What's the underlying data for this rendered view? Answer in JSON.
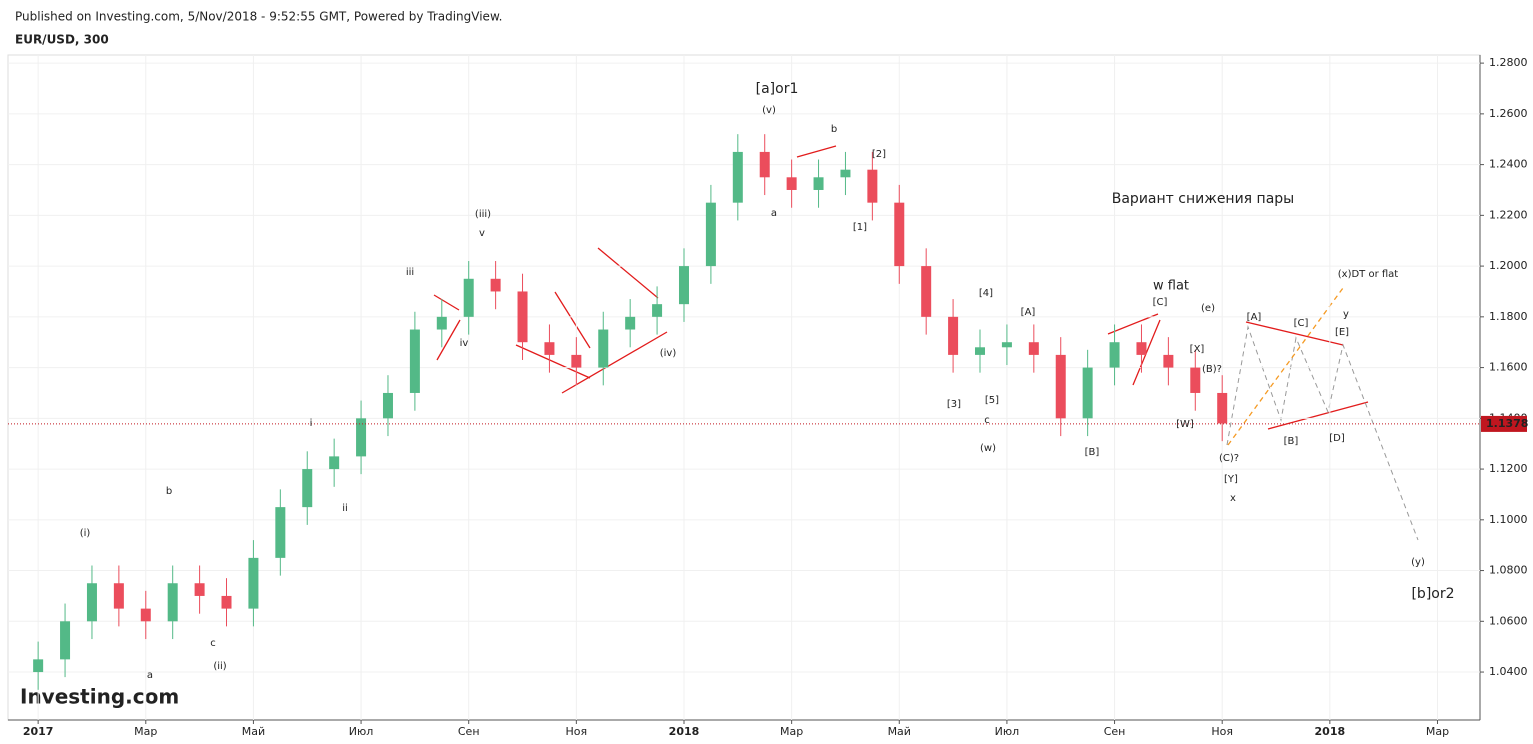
{
  "header": {
    "published": "Published on Investing.com, 5/Nov/2018 - 9:52:55 GMT, Powered by TradingView.",
    "symbol": "EUR/USD, 300",
    "logo": "Investing.com"
  },
  "chart_data": {
    "type": "candlestick",
    "x": [
      0,
      0.5,
      1,
      1.5,
      2,
      2.5,
      3,
      3.5,
      4,
      4.5,
      5,
      5.5,
      6,
      6.5,
      7,
      7.5,
      8,
      8.5,
      9,
      9.5,
      10,
      10.5,
      11,
      11.5,
      12,
      12.5,
      13,
      13.5,
      14,
      14.5,
      15,
      15.5,
      16,
      16.5,
      17,
      17.5,
      18,
      18.5,
      19,
      19.5,
      20,
      20.5,
      21,
      21.5,
      22
    ],
    "open": [
      1.04,
      1.045,
      1.06,
      1.075,
      1.065,
      1.06,
      1.075,
      1.07,
      1.065,
      1.085,
      1.105,
      1.12,
      1.125,
      1.14,
      1.15,
      1.175,
      1.18,
      1.195,
      1.19,
      1.17,
      1.165,
      1.16,
      1.175,
      1.18,
      1.185,
      1.2,
      1.225,
      1.245,
      1.235,
      1.23,
      1.235,
      1.238,
      1.225,
      1.2,
      1.18,
      1.165,
      1.168,
      1.17,
      1.165,
      1.14,
      1.16,
      1.17,
      1.165,
      1.16,
      1.15
    ],
    "high": [
      1.052,
      1.067,
      1.082,
      1.082,
      1.072,
      1.082,
      1.082,
      1.077,
      1.092,
      1.112,
      1.127,
      1.132,
      1.147,
      1.157,
      1.182,
      1.187,
      1.202,
      1.202,
      1.197,
      1.177,
      1.172,
      1.182,
      1.187,
      1.192,
      1.207,
      1.232,
      1.252,
      1.252,
      1.242,
      1.242,
      1.245,
      1.245,
      1.232,
      1.207,
      1.187,
      1.175,
      1.177,
      1.177,
      1.172,
      1.167,
      1.177,
      1.177,
      1.172,
      1.167,
      1.157
    ],
    "low": [
      1.033,
      1.038,
      1.053,
      1.058,
      1.053,
      1.053,
      1.063,
      1.058,
      1.058,
      1.078,
      1.098,
      1.113,
      1.118,
      1.133,
      1.143,
      1.168,
      1.173,
      1.183,
      1.163,
      1.158,
      1.153,
      1.153,
      1.168,
      1.173,
      1.178,
      1.193,
      1.218,
      1.228,
      1.223,
      1.223,
      1.228,
      1.218,
      1.193,
      1.173,
      1.158,
      1.158,
      1.161,
      1.158,
      1.133,
      1.133,
      1.153,
      1.158,
      1.153,
      1.143,
      1.131
    ],
    "close": [
      1.045,
      1.06,
      1.075,
      1.065,
      1.06,
      1.075,
      1.07,
      1.065,
      1.085,
      1.105,
      1.12,
      1.125,
      1.14,
      1.15,
      1.175,
      1.18,
      1.195,
      1.19,
      1.17,
      1.165,
      1.16,
      1.175,
      1.18,
      1.185,
      1.2,
      1.225,
      1.245,
      1.235,
      1.23,
      1.235,
      1.238,
      1.225,
      1.2,
      1.18,
      1.165,
      1.168,
      1.17,
      1.165,
      1.14,
      1.16,
      1.17,
      1.165,
      1.16,
      1.15,
      1.138
    ],
    "up_color": "#53b987",
    "down_color": "#eb4d5c",
    "last_price": 1.1378,
    "last_price_color": "#c0161f",
    "xlim": [
      -0.56,
      26.79
    ],
    "xticks": [
      {
        "value": 0,
        "label": "2017"
      },
      {
        "value": 2,
        "label": "Мар"
      },
      {
        "value": 4,
        "label": "Май"
      },
      {
        "value": 6,
        "label": "Июл"
      },
      {
        "value": 8,
        "label": "Сен"
      },
      {
        "value": 10,
        "label": "Ноя"
      },
      {
        "value": 12,
        "label": "2018"
      },
      {
        "value": 14,
        "label": "Мар"
      },
      {
        "value": 16,
        "label": "Май"
      },
      {
        "value": 18,
        "label": "Июл"
      },
      {
        "value": 20,
        "label": "Сен"
      },
      {
        "value": 22,
        "label": "Ноя"
      },
      {
        "value": 24,
        "label": "2018"
      },
      {
        "value": 26,
        "label": "Мар"
      }
    ],
    "ylim": [
      1.0211,
      1.2832
    ],
    "yticks": [
      {
        "value": 1.04,
        "label": "1.0400"
      },
      {
        "value": 1.06,
        "label": "1.0600"
      },
      {
        "value": 1.08,
        "label": "1.0800"
      },
      {
        "value": 1.1,
        "label": "1.1000"
      },
      {
        "value": 1.12,
        "label": "1.1200"
      },
      {
        "value": 1.14,
        "label": "1.1400"
      },
      {
        "value": 1.16,
        "label": "1.1600"
      },
      {
        "value": 1.18,
        "label": "1.1800"
      },
      {
        "value": 1.2,
        "label": "1.2000"
      },
      {
        "value": 1.22,
        "label": "1.2200"
      },
      {
        "value": 1.24,
        "label": "1.2400"
      },
      {
        "value": 1.26,
        "label": "1.2600"
      },
      {
        "value": 1.28,
        "label": "1.2800"
      }
    ],
    "grid": true,
    "annotations": [
      "[a]or1",
      "(v)",
      "b",
      "[2]",
      "a",
      "[1]",
      "(iii)",
      "v",
      "iii",
      "iv",
      "(iv)",
      "Вариант  снижения пары",
      "w flat",
      "[C]",
      "(e)",
      "[4]",
      "[A]",
      "[3]",
      "[5]",
      "c",
      "(w)",
      "[B]",
      "[X]",
      "(B)?",
      "(C)?",
      "[Y]",
      "x",
      "[W]",
      "[A]",
      "[C]",
      "[E]",
      "y",
      "(x)DT or flat",
      "[B]",
      "[D]",
      "(y)",
      "[b]or2",
      "i",
      "ii",
      "b",
      "(i)",
      "c",
      "(ii)",
      "a"
    ]
  }
}
